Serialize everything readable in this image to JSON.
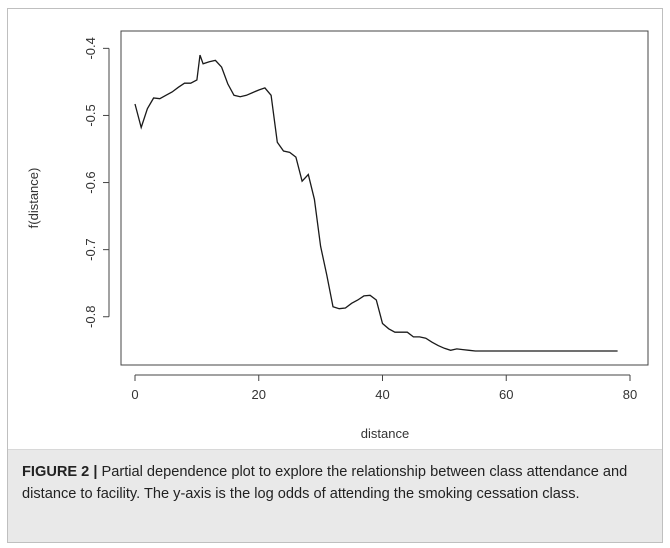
{
  "chart_data": {
    "type": "line",
    "xlabel": "distance",
    "ylabel": "f(distance)",
    "xlim": [
      0,
      80
    ],
    "ylim": [
      -0.86,
      -0.395
    ],
    "xticks": [
      0,
      20,
      40,
      60,
      80
    ],
    "yticks": [
      -0.4,
      -0.5,
      -0.6,
      -0.7,
      -0.8
    ],
    "xtick_labels": [
      "0",
      "20",
      "40",
      "60",
      "80"
    ],
    "ytick_labels": [
      "-0.4",
      "-0.5",
      "-0.6",
      "-0.7",
      "-0.8"
    ],
    "grid": false,
    "series": [
      {
        "x": [
          0,
          1,
          2,
          3,
          4,
          5,
          6,
          7,
          8,
          9,
          10,
          10.5,
          11,
          12,
          13,
          14,
          15,
          16,
          17,
          18,
          19,
          20,
          21,
          22,
          23,
          24,
          25,
          26,
          27,
          28,
          29,
          30,
          31,
          32,
          33,
          34,
          35,
          36,
          37,
          38,
          39,
          40,
          41,
          42,
          43,
          44,
          45,
          46,
          47,
          48,
          49,
          50,
          51,
          52,
          53,
          54,
          55,
          60,
          65,
          70,
          75,
          78
        ],
        "y": [
          -0.483,
          -0.518,
          -0.49,
          -0.474,
          -0.475,
          -0.47,
          -0.465,
          -0.458,
          -0.452,
          -0.452,
          -0.447,
          -0.41,
          -0.423,
          -0.42,
          -0.418,
          -0.428,
          -0.453,
          -0.47,
          -0.472,
          -0.47,
          -0.466,
          -0.462,
          -0.459,
          -0.47,
          -0.54,
          -0.553,
          -0.555,
          -0.562,
          -0.598,
          -0.588,
          -0.625,
          -0.695,
          -0.738,
          -0.785,
          -0.788,
          -0.787,
          -0.78,
          -0.775,
          -0.769,
          -0.768,
          -0.775,
          -0.81,
          -0.818,
          -0.823,
          -0.823,
          -0.823,
          -0.83,
          -0.83,
          -0.832,
          -0.838,
          -0.843,
          -0.847,
          -0.85,
          -0.848,
          -0.849,
          -0.85,
          -0.851,
          -0.851,
          -0.851,
          -0.851,
          -0.851,
          -0.851
        ]
      }
    ]
  },
  "caption": {
    "label": "FIGURE 2 |",
    "text": " Partial dependence plot to explore the relationship between class attendance and distance to facility. The y-axis is the log odds of attending the smoking cessation class."
  }
}
